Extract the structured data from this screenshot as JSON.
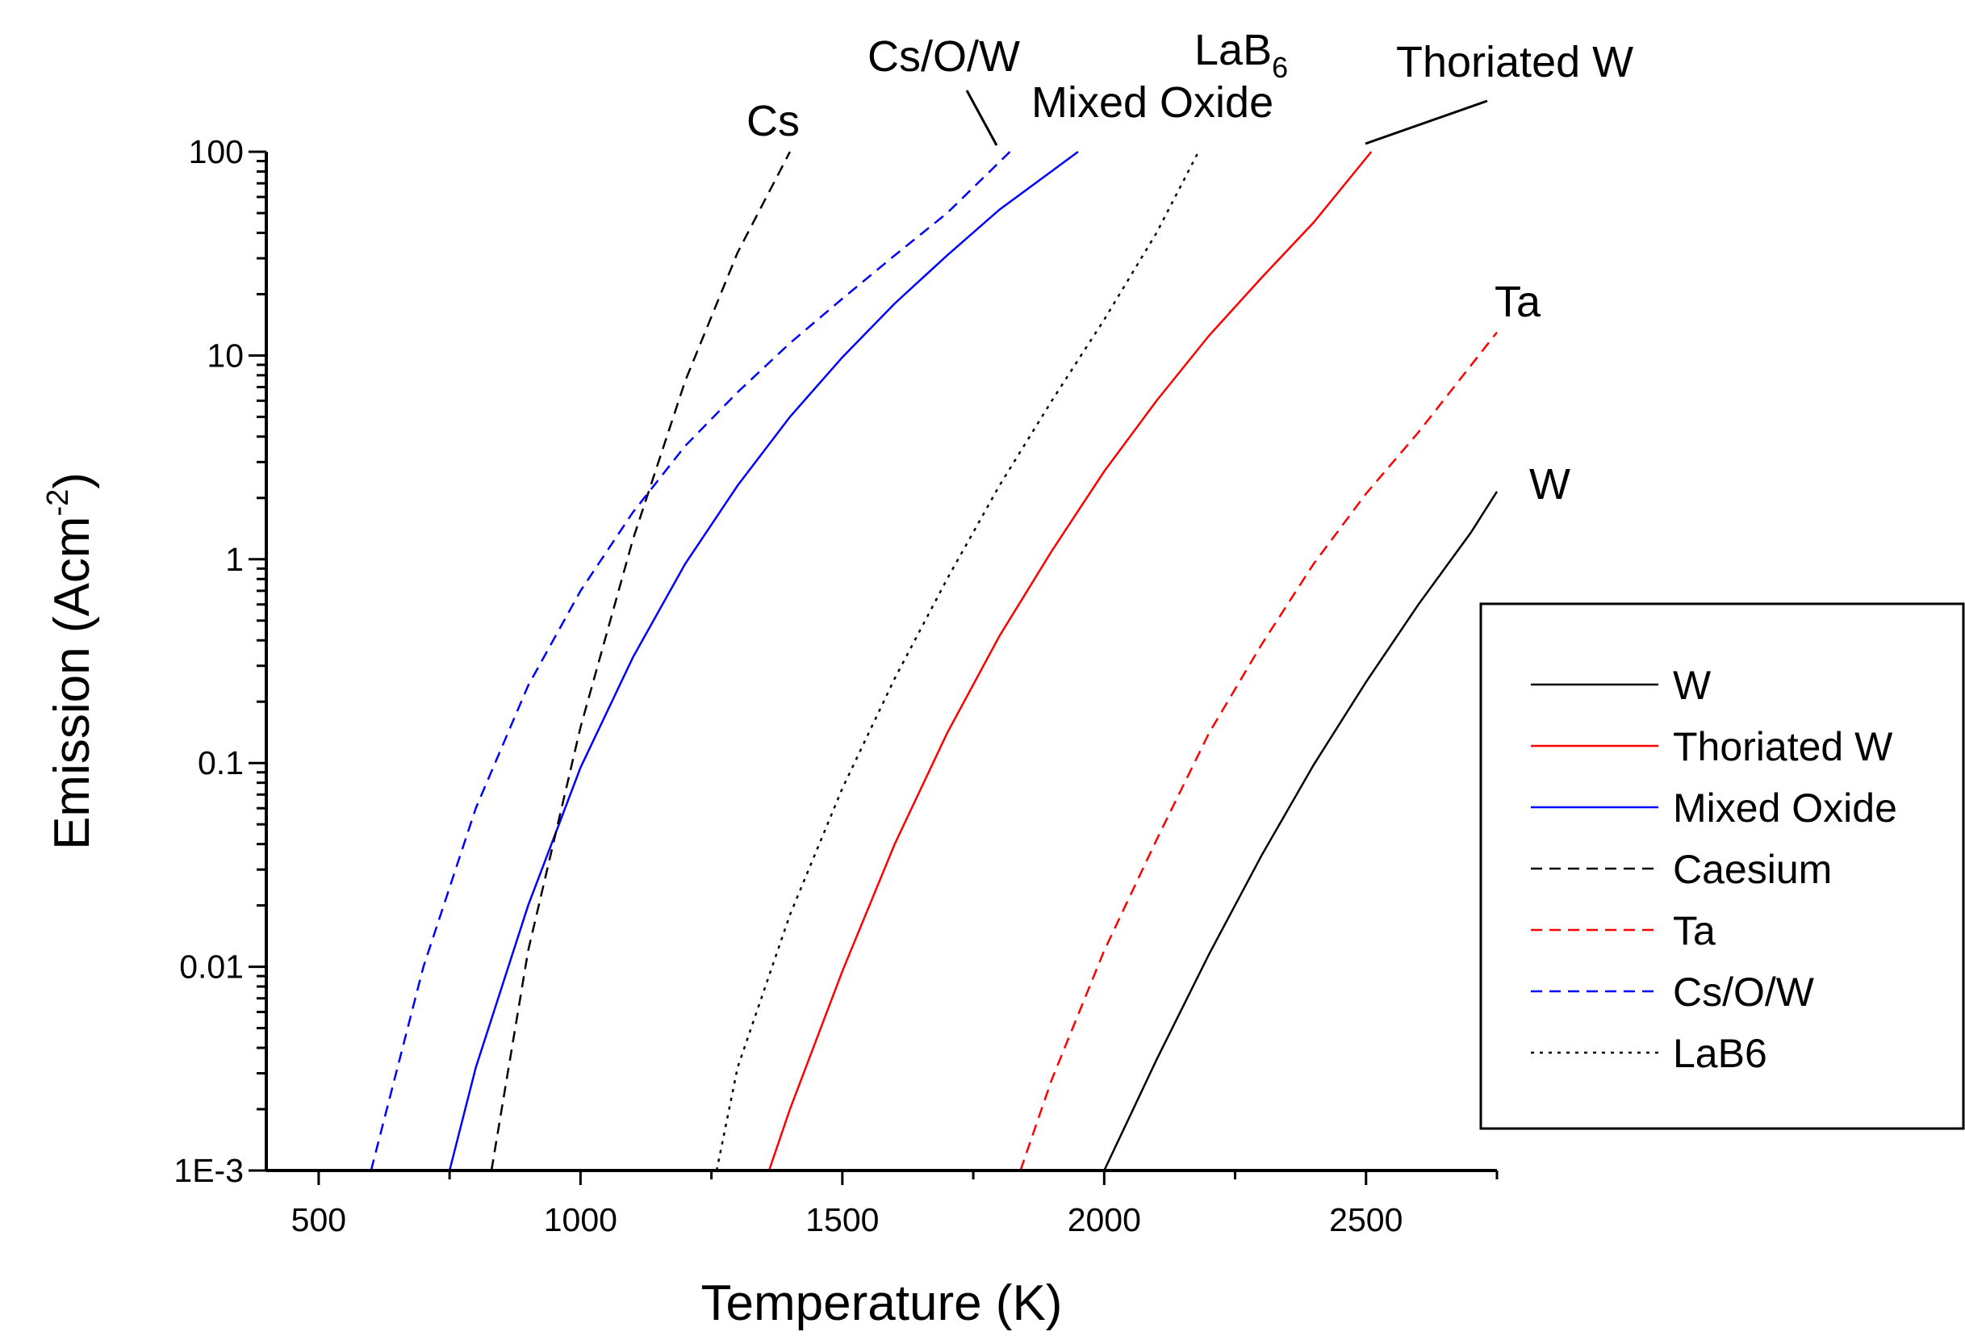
{
  "chart_data": {
    "type": "line",
    "xlabel": "Temperature (K)",
    "ylabel": {
      "main": "Emission (Acm",
      "sup": "-2",
      "end": ")"
    },
    "xlim": [
      400,
      2750
    ],
    "ylim": [
      0.001,
      100
    ],
    "yscale": "log",
    "xticks": [
      {
        "value": 500,
        "label": "500"
      },
      {
        "value": 1000,
        "label": "1000"
      },
      {
        "value": 1500,
        "label": "1500"
      },
      {
        "value": 2000,
        "label": "2000"
      },
      {
        "value": 2500,
        "label": "2500"
      }
    ],
    "yticks": [
      {
        "value": 0.001,
        "label": "1E-3"
      },
      {
        "value": 0.01,
        "label": "0.01"
      },
      {
        "value": 0.1,
        "label": "0.1"
      },
      {
        "value": 1,
        "label": "1"
      },
      {
        "value": 10,
        "label": "10"
      },
      {
        "value": 100,
        "label": "100"
      }
    ],
    "grid": false,
    "legend_position": "right",
    "series": [
      {
        "name": "W",
        "color": "#000000",
        "dash": "solid",
        "x": [
          2000,
          2100,
          2200,
          2300,
          2400,
          2500,
          2600,
          2700,
          2750
        ],
        "y": [
          0.001,
          0.0035,
          0.0115,
          0.035,
          0.098,
          0.25,
          0.6,
          1.35,
          2.15
        ]
      },
      {
        "name": "Thoriated W",
        "color": "#ff0000",
        "dash": "solid",
        "x": [
          1360,
          1400,
          1500,
          1600,
          1700,
          1800,
          1900,
          2000,
          2100,
          2200,
          2300,
          2400,
          2510
        ],
        "y": [
          0.001,
          0.002,
          0.0095,
          0.04,
          0.14,
          0.42,
          1.1,
          2.7,
          6.0,
          12.5,
          24,
          45,
          100
        ]
      },
      {
        "name": "Mixed Oxide",
        "color": "#0000ff",
        "dash": "solid",
        "x": [
          750,
          800,
          900,
          1000,
          1100,
          1200,
          1300,
          1400,
          1500,
          1600,
          1700,
          1800,
          1950
        ],
        "y": [
          0.001,
          0.0032,
          0.02,
          0.095,
          0.33,
          0.95,
          2.3,
          5.0,
          9.8,
          18,
          31,
          52,
          100
        ]
      },
      {
        "name": "Caesium",
        "color": "#000000",
        "dash": "dashed",
        "x": [
          830,
          900,
          1000,
          1100,
          1200,
          1300,
          1400
        ],
        "y": [
          0.001,
          0.012,
          0.15,
          1.25,
          7.5,
          32,
          100
        ]
      },
      {
        "name": "Ta",
        "color": "#ff0000",
        "dash": "dashed",
        "x": [
          1840,
          1900,
          2000,
          2100,
          2200,
          2300,
          2400,
          2500,
          2600,
          2750
        ],
        "y": [
          0.001,
          0.0028,
          0.012,
          0.042,
          0.14,
          0.38,
          0.95,
          2.1,
          4.2,
          13
        ]
      },
      {
        "name": "Cs/O/W",
        "color": "#0000ff",
        "dash": "dashed",
        "x": [
          600,
          700,
          800,
          900,
          1000,
          1100,
          1200,
          1300,
          1400,
          1500,
          1600,
          1700,
          1820
        ],
        "y": [
          0.001,
          0.01,
          0.06,
          0.24,
          0.7,
          1.7,
          3.6,
          6.6,
          11.5,
          19,
          31,
          50,
          100
        ]
      },
      {
        "name": "LaB6",
        "color": "#000000",
        "dash": "dotted",
        "x": [
          1260,
          1300,
          1400,
          1500,
          1600,
          1700,
          1800,
          1900,
          2000,
          2100,
          2180
        ],
        "y": [
          0.001,
          0.0032,
          0.018,
          0.075,
          0.26,
          0.8,
          2.3,
          6.0,
          15,
          40,
          100
        ]
      }
    ],
    "annotations": [
      {
        "text": "Cs",
        "sub": ""
      },
      {
        "text": "Cs/O/W",
        "sub": ""
      },
      {
        "text": "LaB",
        "sub": "6"
      },
      {
        "text": "Mixed Oxide",
        "sub": ""
      },
      {
        "text": "Thoriated W",
        "sub": ""
      },
      {
        "text": "Ta",
        "sub": ""
      },
      {
        "text": "W",
        "sub": ""
      }
    ]
  }
}
